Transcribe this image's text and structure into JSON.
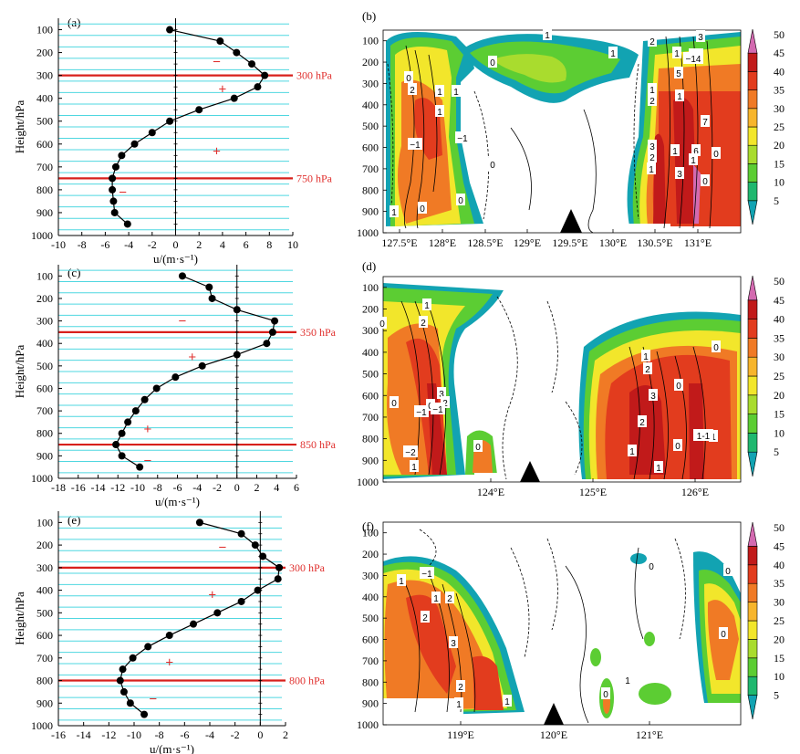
{
  "colors": {
    "cyan_line": "#4fd7e0",
    "red_line": "#d8201c",
    "sign": "#e0302e",
    "colorbar": [
      "#12a3b2",
      "#1fb86f",
      "#5ccd33",
      "#a9dc2e",
      "#f2e62b",
      "#f7b52c",
      "#f07a25",
      "#e23c1e",
      "#c11a1a",
      "#d36ab0"
    ]
  },
  "profiles": [
    {
      "label": "(a)",
      "level_label": "300 hPa",
      "level_label2": "750 hPa",
      "chart_data": {
        "type": "line",
        "xlabel": "u/(m·s⁻¹)",
        "ylabel": "Height/hPa",
        "xlim": [
          -10,
          10
        ],
        "ylim": [
          1000,
          50
        ],
        "xticks": [
          -10,
          -8,
          -6,
          -4,
          -2,
          0,
          2,
          4,
          6,
          8,
          10
        ],
        "xtick_labels": [
          "-10",
          "-8",
          "-6",
          "-4",
          "-2",
          "0",
          "2",
          "4",
          "6",
          "8",
          "10"
        ],
        "yticks": [
          100,
          200,
          300,
          400,
          500,
          600,
          700,
          800,
          900,
          1000
        ],
        "ytick_labels": [
          "100",
          "200",
          "300",
          "400",
          "500",
          "600",
          "700",
          "800",
          "900",
          "1000"
        ],
        "pressure": [
          100,
          150,
          200,
          250,
          300,
          350,
          400,
          450,
          500,
          550,
          600,
          650,
          700,
          750,
          800,
          850,
          900,
          950
        ],
        "u": [
          -0.5,
          3.8,
          5.2,
          6.5,
          7.6,
          7,
          5,
          2,
          -0.5,
          -2,
          -3.5,
          -4.6,
          -5.1,
          -5.4,
          -5.4,
          -5.3,
          -5.2,
          -4.1
        ],
        "red_levels": [
          300,
          750
        ],
        "signs": [
          [
            "−",
            3.5,
            240
          ],
          [
            "+",
            4,
            360
          ],
          [
            "+",
            3.5,
            630
          ],
          [
            "−",
            -4.5,
            810
          ]
        ]
      }
    },
    {
      "label": "(c)",
      "level_label": "350 hPa",
      "level_label2": "850 hPa",
      "chart_data": {
        "type": "line",
        "xlabel": "u/(m·s⁻¹)",
        "ylabel": "Height/hPa",
        "xlim": [
          -18,
          6
        ],
        "ylim": [
          1000,
          50
        ],
        "xticks": [
          -18,
          -16,
          -14,
          -12,
          -10,
          -8,
          -6,
          -4,
          -2,
          0,
          2,
          4,
          6
        ],
        "xtick_labels": [
          "-18",
          "-16",
          "-14",
          "-12",
          "-10",
          "-8",
          "-6",
          "-4",
          "-2",
          "0",
          "2",
          "4",
          "6"
        ],
        "yticks": [
          100,
          200,
          300,
          400,
          500,
          600,
          700,
          800,
          900,
          1000
        ],
        "ytick_labels": [
          "100",
          "200",
          "300",
          "400",
          "500",
          "600",
          "700",
          "800",
          "900",
          "1000"
        ],
        "pressure": [
          100,
          150,
          200,
          250,
          300,
          350,
          400,
          450,
          500,
          550,
          600,
          650,
          700,
          750,
          800,
          850,
          900,
          950
        ],
        "u": [
          -5.5,
          -2.8,
          -2.5,
          0,
          3.8,
          3.6,
          3,
          0,
          -3.5,
          -6.2,
          -8.1,
          -9.3,
          -10.2,
          -11,
          -11.6,
          -12.2,
          -11.6,
          -9.8
        ],
        "red_levels": [
          350,
          850
        ],
        "signs": [
          [
            "−",
            -5.5,
            300
          ],
          [
            "+",
            -4.5,
            460
          ],
          [
            "+",
            -9,
            780
          ],
          [
            "−",
            -9,
            920
          ]
        ]
      }
    },
    {
      "label": "(e)",
      "level_label": "300 hPa",
      "level_label2": "800 hPa",
      "chart_data": {
        "type": "line",
        "xlabel": "u/(m·s⁻¹)",
        "ylabel": "Height/hPa",
        "xlim": [
          -16,
          2
        ],
        "ylim": [
          1000,
          50
        ],
        "xticks": [
          -16,
          -14,
          -12,
          -10,
          -8,
          -6,
          -4,
          -2,
          0,
          2
        ],
        "xtick_labels": [
          "-16",
          "-14",
          "-12",
          "-10",
          "-8",
          "-6",
          "-4",
          "-2",
          "0",
          "2"
        ],
        "yticks": [
          100,
          200,
          300,
          400,
          500,
          600,
          700,
          800,
          900,
          1000
        ],
        "ytick_labels": [
          "100",
          "200",
          "300",
          "400",
          "500",
          "600",
          "700",
          "800",
          "900",
          "1000"
        ],
        "pressure": [
          100,
          150,
          200,
          250,
          300,
          350,
          400,
          450,
          500,
          550,
          600,
          650,
          700,
          750,
          800,
          850,
          900,
          950
        ],
        "u": [
          -4.8,
          -1.5,
          -0.4,
          0.2,
          1.5,
          1.4,
          -0.2,
          -1.5,
          -3.4,
          -5.3,
          -7.2,
          -8.9,
          -10.1,
          -10.9,
          -11.1,
          -10.8,
          -10.3,
          -9.2
        ],
        "red_levels": [
          300,
          800
        ],
        "signs": [
          [
            "−",
            -3,
            210
          ],
          [
            "+",
            -3.8,
            420
          ],
          [
            "+",
            -7.2,
            720
          ],
          [
            "−",
            -8.5,
            880
          ]
        ]
      }
    }
  ],
  "sections": [
    {
      "label": "(b)",
      "ylabel": "",
      "yticks": [
        "100",
        "200",
        "300",
        "400",
        "500",
        "600",
        "700",
        "800",
        "900",
        "1000"
      ],
      "xticks": [
        "127.5°E",
        "128°E",
        "128.5°E",
        "129°E",
        "129.5°E",
        "130°E",
        "130.5°E",
        "131°E"
      ],
      "contour_labels": [
        "0",
        "1",
        "2",
        "−1",
        "−1",
        "0",
        "1",
        "1",
        "0",
        "0",
        "1",
        "1",
        "0",
        "1",
        "2",
        "3",
        "2",
        "1",
        "1",
        "3",
        "−1",
        "−14",
        "1",
        "7",
        "6",
        "5",
        "3",
        "1",
        "0",
        "1",
        "0",
        "2",
        "1"
      ]
    },
    {
      "label": "(d)",
      "ylabel": "",
      "yticks": [
        "100",
        "200",
        "300",
        "400",
        "500",
        "600",
        "700",
        "800",
        "900",
        "1000"
      ],
      "xticks": [
        "124°E",
        "125°E",
        "126°E"
      ],
      "contour_labels": [
        "1",
        "2",
        "0",
        "3",
        "2",
        "−1",
        "0",
        "−1",
        "−2",
        "1",
        "0",
        "0",
        "1",
        "2",
        "3",
        "2",
        "1",
        "0",
        "1",
        "1-1",
        "0",
        "1",
        "0"
      ]
    },
    {
      "label": "(f)",
      "ylabel": "",
      "yticks": [
        "100",
        "200",
        "300",
        "400",
        "500",
        "600",
        "700",
        "800",
        "900",
        "1000"
      ],
      "xticks": [
        "119°E",
        "120°E",
        "121°E"
      ],
      "contour_labels": [
        "1",
        "−1",
        "1",
        "2",
        "2",
        "3",
        "2",
        "1",
        "1",
        "0",
        "0",
        "1",
        "0",
        "0"
      ]
    }
  ],
  "colorbar": {
    "tick_labels": [
      "5",
      "10",
      "15",
      "20",
      "25",
      "30",
      "35",
      "40",
      "45",
      "50"
    ]
  }
}
